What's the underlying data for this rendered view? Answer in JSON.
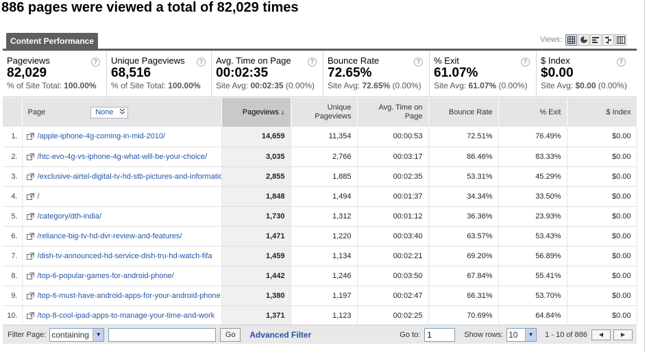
{
  "headline": "886 pages were viewed a total of 82,029 times",
  "tab": "Content Performance",
  "views": {
    "label": "Views:",
    "buttons": [
      "table-view-icon",
      "pie-view-icon",
      "performance-view-icon",
      "comparison-view-icon",
      "pivot-view-icon"
    ]
  },
  "scorecards": [
    {
      "title": "Pageviews",
      "value": "82,029",
      "sub_prefix": "% of Site Total:",
      "sub_bold": "100.00%",
      "sub_suffix": ""
    },
    {
      "title": "Unique Pageviews",
      "value": "68,516",
      "sub_prefix": "% of Site Total:",
      "sub_bold": "100.00%",
      "sub_suffix": ""
    },
    {
      "title": "Avg. Time on Page",
      "value": "00:02:35",
      "sub_prefix": "Site Avg:",
      "sub_bold": "00:02:35",
      "sub_suffix": "(0.00%)"
    },
    {
      "title": "Bounce Rate",
      "value": "72.65%",
      "sub_prefix": "Site Avg:",
      "sub_bold": "72.65%",
      "sub_suffix": "(0.00%)"
    },
    {
      "title": "% Exit",
      "value": "61.07%",
      "sub_prefix": "Site Avg:",
      "sub_bold": "61.07%",
      "sub_suffix": "(0.00%)"
    },
    {
      "title": "$ Index",
      "value": "$0.00",
      "sub_prefix": "Site Avg:",
      "sub_bold": "$0.00",
      "sub_suffix": "(0.00%)"
    }
  ],
  "help_glyph": "?",
  "table": {
    "headers": {
      "page": "Page",
      "segment": "None",
      "pageviews": "Pageviews",
      "sort_arrow": "↓",
      "unique": "Unique Pageviews",
      "avg_time": "Avg. Time on Page",
      "bounce": "Bounce Rate",
      "exit": "% Exit",
      "index": "$ Index"
    },
    "rows": [
      {
        "n": "1.",
        "page": "/apple-iphone-4g-coming-in-mid-2010/",
        "pv": "14,659",
        "upv": "11,354",
        "time": "00:00:53",
        "bounce": "72.51%",
        "exit": "76.49%",
        "idx": "$0.00"
      },
      {
        "n": "2.",
        "page": "/htc-evo-4g-vs-iphone-4g-what-will-be-your-choice/",
        "pv": "3,035",
        "upv": "2,766",
        "time": "00:03:17",
        "bounce": "86.46%",
        "exit": "83.33%",
        "idx": "$0.00"
      },
      {
        "n": "3.",
        "page": "/exclusive-airtel-digital-tv-hd-stb-pictures-and-information",
        "pv": "2,855",
        "upv": "1,885",
        "time": "00:02:35",
        "bounce": "53.31%",
        "exit": "45.29%",
        "idx": "$0.00"
      },
      {
        "n": "4.",
        "page": "/",
        "pv": "1,848",
        "upv": "1,494",
        "time": "00:01:37",
        "bounce": "34.34%",
        "exit": "33.50%",
        "idx": "$0.00"
      },
      {
        "n": "5.",
        "page": "/category/dth-india/",
        "pv": "1,730",
        "upv": "1,312",
        "time": "00:01:12",
        "bounce": "36.36%",
        "exit": "23.93%",
        "idx": "$0.00"
      },
      {
        "n": "6.",
        "page": "/reliance-big-tv-hd-dvr-review-and-features/",
        "pv": "1,471",
        "upv": "1,220",
        "time": "00:03:40",
        "bounce": "63.57%",
        "exit": "53.43%",
        "idx": "$0.00"
      },
      {
        "n": "7.",
        "page": "/dish-tv-announced-hd-service-dish-tru-hd-watch-fifa",
        "pv": "1,459",
        "upv": "1,134",
        "time": "00:02:21",
        "bounce": "69.20%",
        "exit": "56.89%",
        "idx": "$0.00"
      },
      {
        "n": "8.",
        "page": "/top-6-popular-games-for-android-phone/",
        "pv": "1,442",
        "upv": "1,246",
        "time": "00:03:50",
        "bounce": "67.84%",
        "exit": "55.41%",
        "idx": "$0.00"
      },
      {
        "n": "9.",
        "page": "/top-6-must-have-android-apps-for-your-android-phone",
        "pv": "1,380",
        "upv": "1,197",
        "time": "00:02:47",
        "bounce": "66.31%",
        "exit": "53.70%",
        "idx": "$0.00"
      },
      {
        "n": "10.",
        "page": "/top-8-cool-ipad-apps-to-manage-your-time-and-work",
        "pv": "1,371",
        "upv": "1,123",
        "time": "00:02:25",
        "bounce": "70.69%",
        "exit": "64.84%",
        "idx": "$0.00"
      }
    ]
  },
  "footer": {
    "filter_label": "Filter Page:",
    "filter_mode": "containing",
    "filter_value": "",
    "go_label": "Go",
    "advanced_filter": "Advanced Filter",
    "goto_label": "Go to:",
    "goto_value": "1",
    "show_rows_label": "Show rows:",
    "show_rows_value": "10",
    "range": "1 - 10 of 886",
    "prev_glyph": "◀",
    "next_glyph": "▶"
  }
}
